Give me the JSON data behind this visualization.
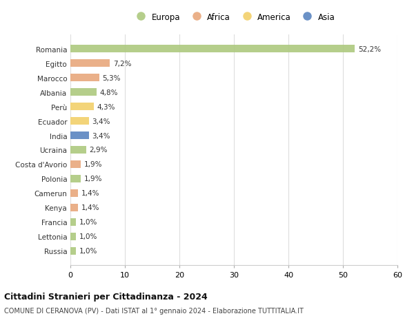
{
  "countries": [
    "Romania",
    "Egitto",
    "Marocco",
    "Albania",
    "Perù",
    "Ecuador",
    "India",
    "Ucraina",
    "Costa d'Avorio",
    "Polonia",
    "Camerun",
    "Kenya",
    "Francia",
    "Lettonia",
    "Russia"
  ],
  "values": [
    52.2,
    7.2,
    5.3,
    4.8,
    4.3,
    3.4,
    3.4,
    2.9,
    1.9,
    1.9,
    1.4,
    1.4,
    1.0,
    1.0,
    1.0
  ],
  "labels": [
    "52,2%",
    "7,2%",
    "5,3%",
    "4,8%",
    "4,3%",
    "3,4%",
    "3,4%",
    "2,9%",
    "1,9%",
    "1,9%",
    "1,4%",
    "1,4%",
    "1,0%",
    "1,0%",
    "1,0%"
  ],
  "continent": [
    "Europa",
    "Africa",
    "Africa",
    "Europa",
    "America",
    "America",
    "Asia",
    "Europa",
    "Africa",
    "Europa",
    "Africa",
    "Africa",
    "Europa",
    "Europa",
    "Europa"
  ],
  "colors": {
    "Europa": "#adc97f",
    "Africa": "#e8a87c",
    "America": "#f2d06b",
    "Asia": "#5b85c0"
  },
  "title": "Cittadini Stranieri per Cittadinanza - 2024",
  "subtitle": "COMUNE DI CERANOVA (PV) - Dati ISTAT al 1° gennaio 2024 - Elaborazione TUTTITALIA.IT",
  "xlim": [
    0,
    60
  ],
  "xticks": [
    0,
    10,
    20,
    30,
    40,
    50,
    60
  ],
  "background_color": "#ffffff",
  "grid_color": "#dddddd",
  "bar_height": 0.55
}
